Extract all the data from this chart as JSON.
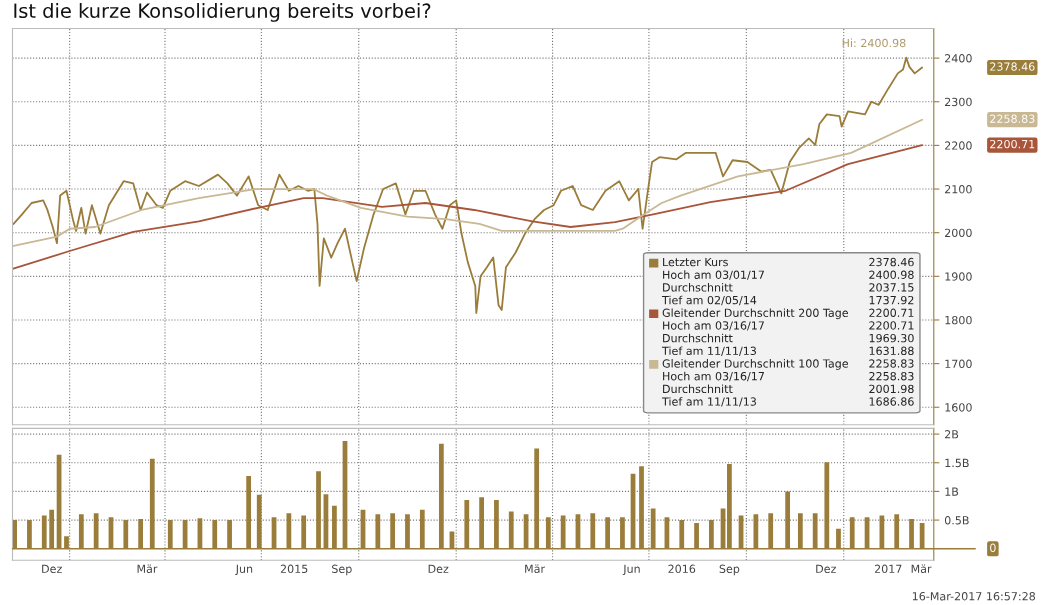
{
  "chart_data": [
    {
      "type": "line",
      "title": "Ist die kurze Konsolidierung bereits vorbei?",
      "xlim": [
        "2014-11-08",
        "2017-03-27"
      ],
      "ylim": [
        1560,
        2468
      ],
      "yticks": [
        1600,
        1700,
        1800,
        1900,
        2000,
        2100,
        2200,
        2300,
        2400
      ],
      "xticks": [
        {
          "value": "2015-01-01",
          "label": null
        },
        {
          "value": "2015-04-01",
          "label": null
        },
        {
          "value": "2015-07-01",
          "label": null
        },
        {
          "value": "2015-10-01",
          "label": null
        },
        {
          "value": "2016-01-01",
          "label": null
        },
        {
          "value": "2016-04-01",
          "label": null
        },
        {
          "value": "2016-07-01",
          "label": null
        },
        {
          "value": "2016-10-01",
          "label": null
        },
        {
          "value": "2017-01-01",
          "label": null
        }
      ],
      "tick_labels": "y",
      "grid": true,
      "legend": "bottom right",
      "series": [
        {
          "name": "Letzter Kurs",
          "color": "#9a7d3a",
          "x": [
            "2014-11-09",
            "2014-11-17",
            "2014-11-26",
            "2014-12-07",
            "2014-12-11",
            "2014-12-16",
            "2014-12-20",
            "2014-12-23",
            "2014-12-29",
            "2015-01-04",
            "2015-01-07",
            "2015-01-12",
            "2015-01-16",
            "2015-01-22",
            "2015-01-30",
            "2015-02-07",
            "2015-02-21",
            "2015-03-02",
            "2015-03-09",
            "2015-03-15",
            "2015-03-24",
            "2015-03-30",
            "2015-04-06",
            "2015-04-20",
            "2015-05-03",
            "2015-05-21",
            "2015-05-30",
            "2015-06-08",
            "2015-06-19",
            "2015-06-28",
            "2015-07-07",
            "2015-07-18",
            "2015-07-27",
            "2015-08-05",
            "2015-08-14",
            "2015-08-20",
            "2015-08-23",
            "2015-08-25",
            "2015-08-29",
            "2015-09-05",
            "2015-09-11",
            "2015-09-18",
            "2015-09-25",
            "2015-09-29",
            "2015-10-06",
            "2015-10-15",
            "2015-10-24",
            "2015-11-05",
            "2015-11-14",
            "2015-11-22",
            "2015-12-03",
            "2015-12-12",
            "2015-12-19",
            "2015-12-26",
            "2016-01-01",
            "2016-01-06",
            "2016-01-12",
            "2016-01-19",
            "2016-01-20",
            "2016-01-24",
            "2016-01-30",
            "2016-02-05",
            "2016-02-10",
            "2016-02-13",
            "2016-02-17",
            "2016-02-26",
            "2016-03-06",
            "2016-03-15",
            "2016-03-24",
            "2016-04-02",
            "2016-04-09",
            "2016-04-20",
            "2016-04-28",
            "2016-05-09",
            "2016-05-21",
            "2016-06-03",
            "2016-06-12",
            "2016-06-21",
            "2016-06-25",
            "2016-06-30",
            "2016-07-04",
            "2016-07-11",
            "2016-07-27",
            "2016-08-05",
            "2016-08-18",
            "2016-09-02",
            "2016-09-09",
            "2016-09-18",
            "2016-10-02",
            "2016-10-15",
            "2016-10-24",
            "2016-11-03",
            "2016-11-11",
            "2016-11-20",
            "2016-11-29",
            "2016-12-05",
            "2016-12-09",
            "2016-12-16",
            "2016-12-28",
            "2016-12-30",
            "2017-01-05",
            "2017-01-21",
            "2017-01-27",
            "2017-02-03",
            "2017-02-12",
            "2017-02-21",
            "2017-02-26",
            "2017-03-01",
            "2017-03-04",
            "2017-03-09",
            "2017-03-16"
          ],
          "values": [
            2020,
            2042,
            2068,
            2074,
            2052,
            2013,
            1976,
            2085,
            2096,
            2031,
            2004,
            2057,
            1998,
            2063,
            1998,
            2063,
            2118,
            2113,
            2052,
            2092,
            2063,
            2057,
            2096,
            2118,
            2107,
            2133,
            2113,
            2085,
            2129,
            2063,
            2052,
            2133,
            2096,
            2107,
            2096,
            2100,
            2020,
            1878,
            1987,
            1943,
            1976,
            2009,
            1932,
            1889,
            1965,
            2042,
            2100,
            2113,
            2042,
            2096,
            2096,
            2042,
            2009,
            2063,
            2074,
            1998,
            1932,
            1878,
            1816,
            1900,
            1921,
            1943,
            1834,
            1823,
            1921,
            1954,
            1998,
            2031,
            2052,
            2063,
            2096,
            2107,
            2063,
            2052,
            2096,
            2118,
            2074,
            2100,
            2009,
            2096,
            2162,
            2173,
            2168,
            2183,
            2183,
            2183,
            2129,
            2166,
            2162,
            2140,
            2144,
            2090,
            2162,
            2195,
            2216,
            2201,
            2249,
            2271,
            2267,
            2243,
            2278,
            2271,
            2300,
            2293,
            2330,
            2365,
            2374,
            2400.98,
            2380,
            2365,
            2378.46
          ]
        },
        {
          "name": "Gleitender Durchschnitt 200 Tage",
          "color": "#a9553a",
          "x": [
            "2014-11-08",
            "2015-01-01",
            "2015-03-02",
            "2015-05-03",
            "2015-06-28",
            "2015-08-10",
            "2015-08-28",
            "2015-10-23",
            "2015-12-03",
            "2016-01-18",
            "2016-03-13",
            "2016-04-18",
            "2016-05-30",
            "2016-07-05",
            "2016-08-28",
            "2016-11-07",
            "2017-01-05",
            "2017-03-16"
          ],
          "values": [
            1917,
            1958,
            2002,
            2026,
            2057,
            2079,
            2079,
            2059,
            2068,
            2052,
            2026,
            2013,
            2024,
            2042,
            2070,
            2096,
            2157,
            2200.71
          ]
        },
        {
          "name": "Gleitender Durchschnitt 100 Tage",
          "color": "#c9b894",
          "x": [
            "2014-11-08",
            "2014-12-20",
            "2015-01-01",
            "2015-01-25",
            "2015-03-10",
            "2015-05-03",
            "2015-06-25",
            "2015-08-19",
            "2015-09-01",
            "2015-10-03",
            "2015-11-16",
            "2015-12-22",
            "2016-01-23",
            "2016-02-13",
            "2016-04-16",
            "2016-05-30",
            "2016-06-07",
            "2016-06-25",
            "2016-07-13",
            "2016-07-31",
            "2016-09-23",
            "2016-11-24",
            "2017-01-08",
            "2017-03-16"
          ],
          "values": [
            1969,
            1991,
            2009,
            2013,
            2052,
            2079,
            2100,
            2100,
            2085,
            2057,
            2037,
            2031,
            2020,
            2004,
            2004,
            2004,
            2010,
            2040,
            2068,
            2085,
            2129,
            2157,
            2183,
            2258.83
          ]
        }
      ],
      "annotations": [
        {
          "text": "Hi: 2400.98",
          "x": "2017-03-01",
          "y": 2400.98
        },
        "2378.46",
        "2200.71",
        "2258.83",
        "2378.46",
        "Hoch am 03/01/17",
        "2400.98",
        "Durchschnitt",
        "2037.15",
        "Tief am 02/05/14",
        "1737.92",
        "2200.71",
        "Hoch am 03/16/17",
        "2200.71",
        "Durchschnitt",
        "1969.30",
        "Tief am 11/11/13",
        "1631.88",
        "2258.83",
        "Hoch am 03/16/17",
        "2258.83",
        "Durchschnitt",
        "2001.98",
        "Tief am 11/11/13",
        "1686.86"
      ]
    },
    {
      "type": "bar",
      "xlim": [
        "2014-11-08",
        "2017-03-27"
      ],
      "ylim": [
        -0.2,
        2.1
      ],
      "yticks": [
        {
          "value": 0.5,
          "label": "0.5B"
        },
        {
          "value": 1,
          "label": "1B"
        },
        {
          "value": 1.5,
          "label": "1.5B"
        },
        {
          "value": 2,
          "label": "2B"
        }
      ],
      "xticks": [
        {
          "value": "2014-12-15",
          "label": "Dez"
        },
        {
          "value": "2015-01-01",
          "label": null
        },
        {
          "value": "2015-03-15",
          "label": "Mär"
        },
        {
          "value": "2015-04-01",
          "label": null
        },
        {
          "value": "2015-06-15",
          "label": "Jun"
        },
        {
          "value": "2015-07-01",
          "label": null
        },
        {
          "value": "2015-08-01",
          "label": "2015"
        },
        {
          "value": "2015-09-15",
          "label": "Sep"
        },
        {
          "value": "2015-10-01",
          "label": null
        },
        {
          "value": "2015-12-15",
          "label": "Dez"
        },
        {
          "value": "2016-01-01",
          "label": null
        },
        {
          "value": "2016-03-15",
          "label": "Mär"
        },
        {
          "value": "2016-04-01",
          "label": null
        },
        {
          "value": "2016-06-15",
          "label": "Jun"
        },
        {
          "value": "2016-07-01",
          "label": null
        },
        {
          "value": "2016-08-01",
          "label": "2016"
        },
        {
          "value": "2016-09-15",
          "label": "Sep"
        },
        {
          "value": "2016-10-01",
          "label": null
        },
        {
          "value": "2016-12-15",
          "label": "Dez"
        },
        {
          "value": "2017-01-01",
          "label": null
        },
        {
          "value": "2017-02-12",
          "label": "2017"
        },
        {
          "value": "2017-03-15",
          "label": "Mär"
        }
      ],
      "grid": true,
      "series": [
        {
          "color": "#9a7d3a",
          "x": [
            "2014-11-10",
            "2014-11-24",
            "2014-12-08",
            "2014-12-15",
            "2014-12-22",
            "2014-12-29",
            "2015-01-12",
            "2015-01-26",
            "2015-02-09",
            "2015-02-23",
            "2015-03-09",
            "2015-03-20",
            "2015-04-06",
            "2015-04-20",
            "2015-05-04",
            "2015-05-18",
            "2015-06-01",
            "2015-06-19",
            "2015-06-29",
            "2015-07-13",
            "2015-07-27",
            "2015-08-10",
            "2015-08-24",
            "2015-08-31",
            "2015-09-08",
            "2015-09-18",
            "2015-10-05",
            "2015-10-19",
            "2015-11-02",
            "2015-11-16",
            "2015-11-30",
            "2015-12-18",
            "2015-12-28",
            "2016-01-11",
            "2016-01-25",
            "2016-02-08",
            "2016-02-22",
            "2016-03-07",
            "2016-03-17",
            "2016-03-28",
            "2016-04-11",
            "2016-04-25",
            "2016-05-09",
            "2016-05-23",
            "2016-06-06",
            "2016-06-16",
            "2016-06-24",
            "2016-07-05",
            "2016-07-18",
            "2016-08-01",
            "2016-08-15",
            "2016-08-29",
            "2016-09-09",
            "2016-09-15",
            "2016-09-26",
            "2016-10-10",
            "2016-10-24",
            "2016-11-09",
            "2016-11-21",
            "2016-12-05",
            "2016-12-16",
            "2016-12-27",
            "2017-01-09",
            "2017-01-23",
            "2017-02-06",
            "2017-02-20",
            "2017-03-06",
            "2017-03-16"
          ],
          "values": [
            0.5,
            0.5,
            0.58,
            0.68,
            1.64,
            0.22,
            0.6,
            0.62,
            0.55,
            0.5,
            0.52,
            1.57,
            0.5,
            0.5,
            0.53,
            0.5,
            0.5,
            1.27,
            0.94,
            0.55,
            0.62,
            0.58,
            1.35,
            0.95,
            0.75,
            1.88,
            0.68,
            0.6,
            0.62,
            0.6,
            0.68,
            1.83,
            0.3,
            0.85,
            0.9,
            0.85,
            0.65,
            0.6,
            1.75,
            0.55,
            0.58,
            0.6,
            0.62,
            0.55,
            0.55,
            1.31,
            1.44,
            0.7,
            0.55,
            0.5,
            0.45,
            0.5,
            0.7,
            1.48,
            0.58,
            0.6,
            0.62,
            1.0,
            0.62,
            0.62,
            1.51,
            0.35,
            0.55,
            0.55,
            0.58,
            0.6,
            0.52,
            0.45
          ]
        }
      ],
      "ref_lines": [
        {
          "axis": "y",
          "value": 0,
          "label": "0",
          "color": "#9a7d3a"
        }
      ],
      "annotations": [
        "16-Mar-2017 16:57:28"
      ]
    }
  ]
}
